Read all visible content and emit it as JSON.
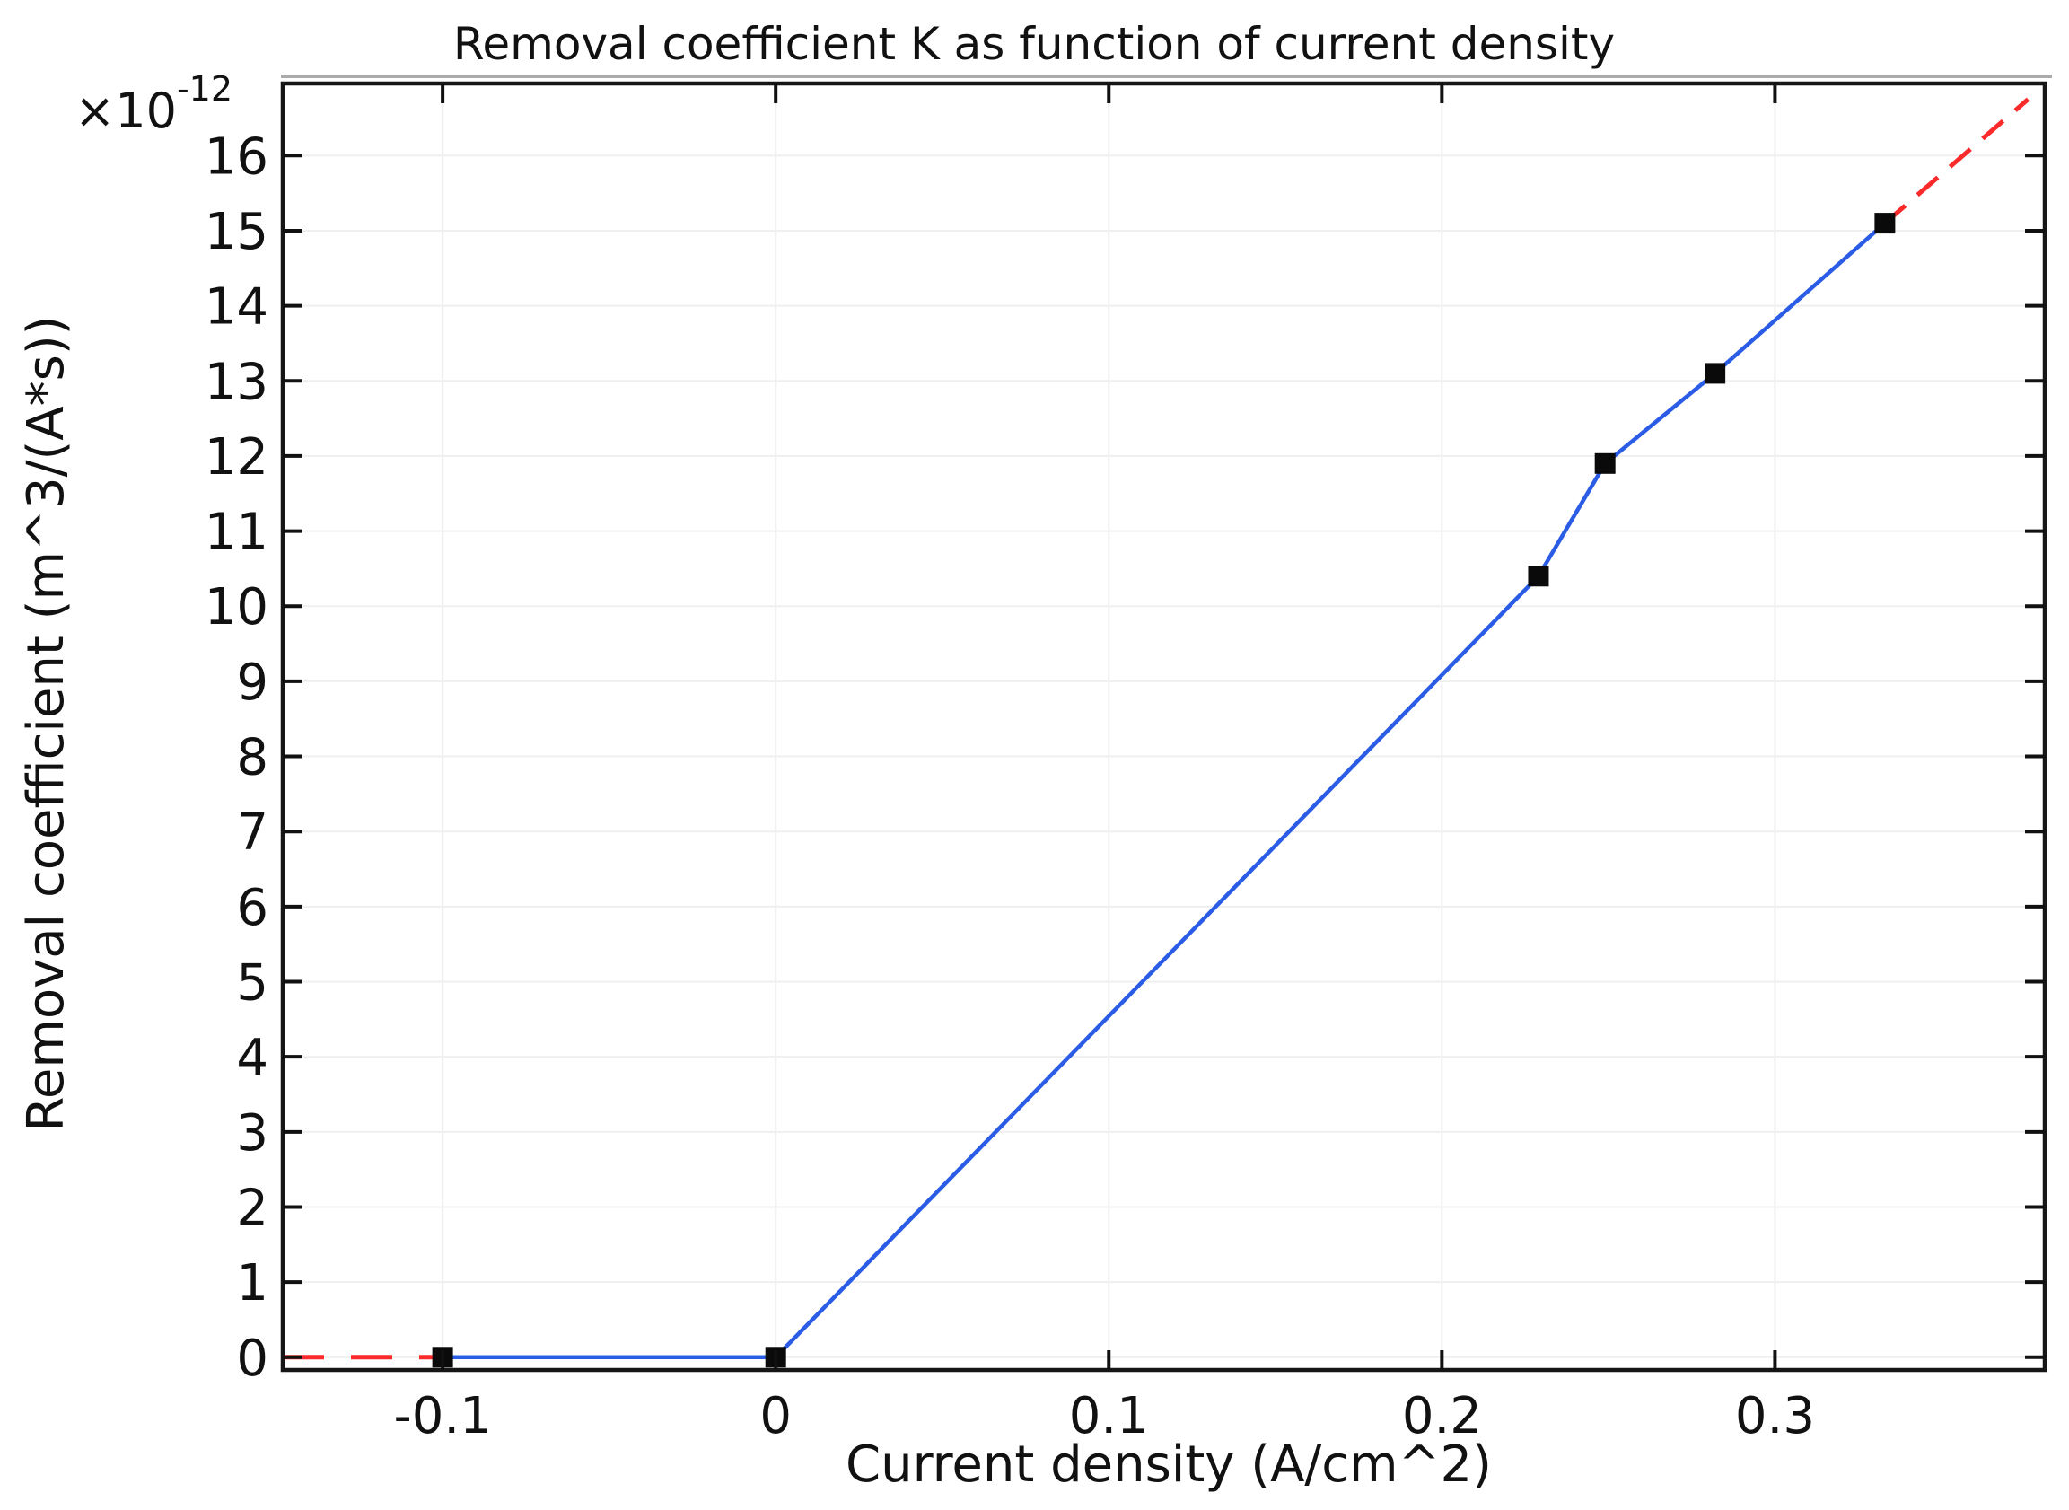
{
  "chart_data": {
    "type": "line",
    "title": "Removal coefficient K as function of current density",
    "xlabel": "Current density (A/cm^2)",
    "ylabel": "Removal coefficient (m^3/(A*s))",
    "y_scale_factor": {
      "base": "×10",
      "exponent": "-12"
    },
    "xlim": [
      -0.148,
      0.381
    ],
    "ylim": [
      -0.17,
      16.96
    ],
    "x_ticks": [
      -0.1,
      0,
      0.1,
      0.2,
      0.3
    ],
    "x_tick_labels": [
      "-0.1",
      "0",
      "0.1",
      "0.2",
      "0.3"
    ],
    "y_ticks": [
      0,
      1,
      2,
      3,
      4,
      5,
      6,
      7,
      8,
      9,
      10,
      11,
      12,
      13,
      14,
      15,
      16
    ],
    "y_tick_labels": [
      "0",
      "1",
      "2",
      "3",
      "4",
      "5",
      "6",
      "7",
      "8",
      "9",
      "10",
      "11",
      "12",
      "13",
      "14",
      "15",
      "16"
    ],
    "grid": true,
    "legend": "none",
    "series": [
      {
        "id": "removal-coefficient-data",
        "style": "solid",
        "color": "#2b5ce6",
        "marker": "square",
        "marker_color": "#0a0a0a",
        "points": [
          [
            -0.1,
            0
          ],
          [
            0,
            0
          ],
          [
            0.229,
            10.4
          ],
          [
            0.249,
            11.9
          ],
          [
            0.282,
            13.1
          ],
          [
            0.333,
            15.1
          ]
        ]
      },
      {
        "id": "extrapolation-dashed",
        "style": "dashed",
        "color": "#fa2a2a",
        "segments": [
          [
            [
              -0.148,
              0
            ],
            [
              -0.1,
              0
            ]
          ],
          [
            [
              0.333,
              15.1
            ],
            [
              0.376,
              16.75
            ]
          ]
        ]
      }
    ]
  },
  "frame": {
    "line_color": "#161616",
    "tick_color": "#111111",
    "grid_color": "#efefef",
    "shadow_color": "#ababab",
    "background": "#ffffff"
  }
}
